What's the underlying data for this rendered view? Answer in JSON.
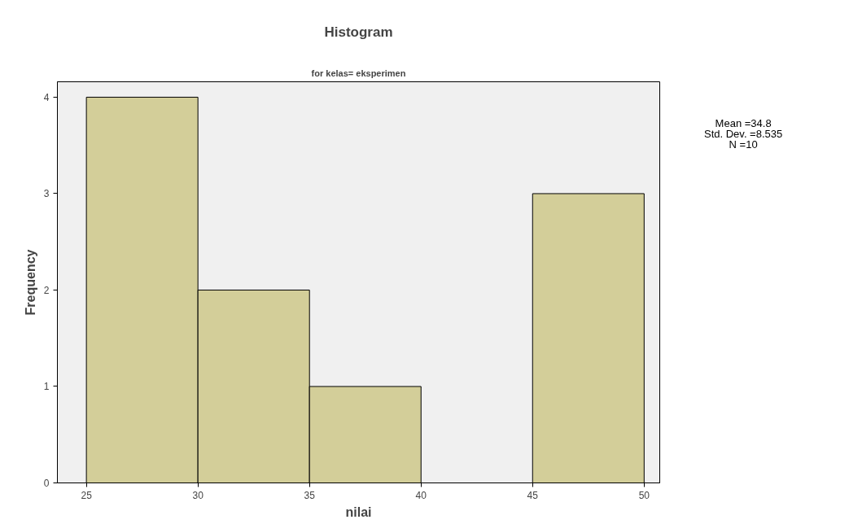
{
  "chart_data": {
    "type": "histogram",
    "title": "Histogram",
    "subtitle": "for kelas= eksperimen",
    "xlabel": "nilai",
    "ylabel": "Frequency",
    "bins": [
      25,
      30,
      35,
      40,
      45,
      50
    ],
    "values": [
      4,
      2,
      1,
      0,
      3
    ],
    "color": "#d3ce99",
    "xlim": [
      23.7,
      50.7
    ],
    "ylim": [
      0,
      4.16
    ],
    "xticks": [
      25,
      30,
      35,
      40,
      45,
      50
    ],
    "yticks": [
      0,
      1,
      2,
      3,
      4
    ],
    "grid": false,
    "annotations": [
      "Mean =34.8",
      "Std. Dev. =8.535",
      "N =10"
    ]
  }
}
